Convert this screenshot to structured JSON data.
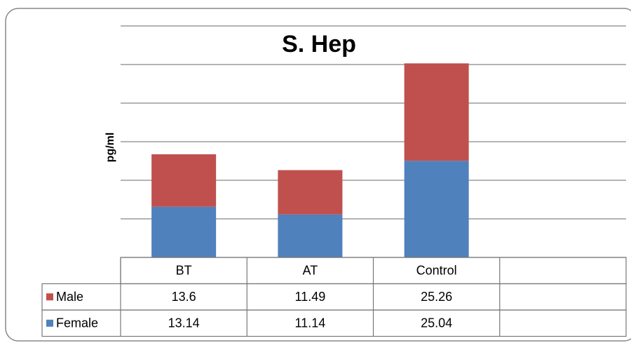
{
  "chart_data": {
    "type": "stacked_bar",
    "title": "S. Hep",
    "y_label": "pg/ml",
    "categories": [
      "BT",
      "AT",
      "Control",
      null
    ],
    "series": [
      {
        "name": "Male",
        "color": "#c0504d",
        "values": [
          13.6,
          11.49,
          25.26,
          null
        ]
      },
      {
        "name": "Female",
        "color": "#4f81bd",
        "values": [
          13.14,
          11.14,
          25.04,
          null
        ]
      }
    ],
    "ylim": [
      0,
      60
    ],
    "yticks": [
      0,
      10,
      20,
      30,
      40,
      50,
      60
    ],
    "grid": true,
    "data_table": true
  }
}
